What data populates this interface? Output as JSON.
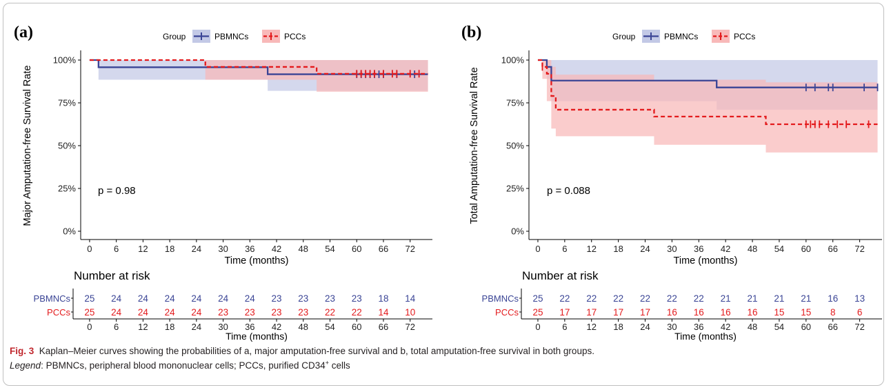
{
  "legend": {
    "title": "Group",
    "items": [
      {
        "name": "PBMNCs",
        "color": "#3a4495",
        "band": "#c3c9e6"
      },
      {
        "name": "PCCs",
        "color": "#e31a1c",
        "band": "#f8b9b9"
      }
    ]
  },
  "risk_table_title": "Number at risk",
  "caption": {
    "label": "Fig. 3",
    "text": "Kaplan–Meier curves showing the probabilities of a, major amputation-free survival and b, total amputation-free survival in both groups.",
    "legend_label": "Legend",
    "legend_text": ": PBMNCs, peripheral blood mononuclear cells; PCCs, purified CD34",
    "superscript": "+",
    "legend_tail": " cells"
  },
  "chart_data": [
    {
      "type": "line",
      "panel_label": "(a)",
      "title": "",
      "xlabel": "Time (months)",
      "ylabel": "Major Amputation-free Survival Rate",
      "xlim": [
        -2,
        77
      ],
      "ylim": [
        0,
        1
      ],
      "x_ticks": [
        0,
        6,
        12,
        18,
        24,
        30,
        36,
        42,
        48,
        54,
        60,
        66,
        72
      ],
      "y_ticks": [
        0,
        0.25,
        0.5,
        0.75,
        1.0
      ],
      "y_tick_labels": [
        "0%",
        "25%",
        "50%",
        "75%",
        "100%"
      ],
      "p_value": "p = 0.98",
      "series": [
        {
          "name": "PBMNCs",
          "color": "#3a4495",
          "dashed": false,
          "steps": [
            [
              0,
              1.0
            ],
            [
              2,
              0.958
            ],
            [
              40,
              0.917
            ],
            [
              76,
              0.917
            ]
          ],
          "lower": [
            [
              0,
              1.0
            ],
            [
              2,
              0.885
            ],
            [
              40,
              0.82
            ],
            [
              76,
              0.82
            ]
          ],
          "upper": [
            [
              0,
              1.0
            ],
            [
              2,
              1.0
            ],
            [
              40,
              1.0
            ],
            [
              76,
              1.0
            ]
          ],
          "censors": [
            60,
            61,
            62,
            63,
            64,
            65,
            66,
            69,
            73
          ]
        },
        {
          "name": "PCCs",
          "color": "#e31a1c",
          "dashed": true,
          "steps": [
            [
              0,
              1.0
            ],
            [
              26,
              0.96
            ],
            [
              51,
              0.92
            ],
            [
              76,
              0.92
            ]
          ],
          "lower": [
            [
              0,
              1.0
            ],
            [
              26,
              0.885
            ],
            [
              51,
              0.815
            ],
            [
              76,
              0.815
            ]
          ],
          "upper": [
            [
              0,
              1.0
            ],
            [
              26,
              1.0
            ],
            [
              51,
              1.0
            ],
            [
              76,
              1.0
            ]
          ],
          "censors": [
            60,
            61,
            62,
            63,
            64,
            66,
            68,
            69,
            72,
            74
          ]
        }
      ],
      "risk_xlabel": "Time (months)",
      "risk_table": [
        {
          "name": "PBMNCs",
          "counts": [
            "25",
            "24",
            "24",
            "24",
            "24",
            "24",
            "24",
            "23",
            "23",
            "23",
            "23",
            "18",
            "14"
          ]
        },
        {
          "name": "PCCs",
          "counts": [
            "25",
            "24",
            "24",
            "24",
            "24",
            "23",
            "23",
            "23",
            "23",
            "22",
            "22",
            "14",
            "10"
          ]
        }
      ]
    },
    {
      "type": "line",
      "panel_label": "(b)",
      "title": "",
      "xlabel": "Time (months)",
      "ylabel": "Total Amputation-free Survival Rate",
      "xlim": [
        -2,
        77
      ],
      "ylim": [
        0,
        1
      ],
      "x_ticks": [
        0,
        6,
        12,
        18,
        24,
        30,
        36,
        42,
        48,
        54,
        60,
        66,
        72
      ],
      "y_ticks": [
        0,
        0.25,
        0.5,
        0.75,
        1.0
      ],
      "y_tick_labels": [
        "0%",
        "25%",
        "50%",
        "75%",
        "100%"
      ],
      "p_value": "p = 0.088",
      "series": [
        {
          "name": "PBMNCs",
          "color": "#3a4495",
          "dashed": false,
          "steps": [
            [
              0,
              1.0
            ],
            [
              2,
              0.96
            ],
            [
              3,
              0.88
            ],
            [
              40,
              0.84
            ],
            [
              76,
              0.84
            ]
          ],
          "lower": [
            [
              0,
              1.0
            ],
            [
              2,
              0.89
            ],
            [
              3,
              0.76
            ],
            [
              40,
              0.71
            ],
            [
              76,
              0.71
            ]
          ],
          "upper": [
            [
              0,
              1.0
            ],
            [
              2,
              1.0
            ],
            [
              3,
              1.0
            ],
            [
              40,
              1.0
            ],
            [
              76,
              1.0
            ]
          ],
          "censors": [
            60,
            62,
            65,
            66,
            73,
            76
          ]
        },
        {
          "name": "PCCs",
          "color": "#e31a1c",
          "dashed": true,
          "steps": [
            [
              0,
              1.0
            ],
            [
              1,
              0.96
            ],
            [
              2,
              0.92
            ],
            [
              3,
              0.79
            ],
            [
              4,
              0.71
            ],
            [
              26,
              0.67
            ],
            [
              51,
              0.625
            ],
            [
              76,
              0.625
            ]
          ],
          "lower": [
            [
              0,
              1.0
            ],
            [
              1,
              0.89
            ],
            [
              2,
              0.76
            ],
            [
              3,
              0.6
            ],
            [
              4,
              0.555
            ],
            [
              26,
              0.505
            ],
            [
              51,
              0.46
            ],
            [
              76,
              0.46
            ]
          ],
          "upper": [
            [
              0,
              1.0
            ],
            [
              1,
              1.0
            ],
            [
              2,
              1.0
            ],
            [
              3,
              0.96
            ],
            [
              4,
              0.915
            ],
            [
              26,
              0.885
            ],
            [
              51,
              0.87
            ],
            [
              76,
              0.87
            ]
          ],
          "censors": [
            1,
            60,
            61,
            62,
            63,
            65,
            67,
            69,
            74
          ]
        }
      ],
      "risk_xlabel": "Time (months)",
      "risk_table": [
        {
          "name": "PBMNCs",
          "counts": [
            "25",
            "22",
            "22",
            "22",
            "22",
            "22",
            "22",
            "21",
            "21",
            "21",
            "21",
            "16",
            "13"
          ]
        },
        {
          "name": "PCCs",
          "counts": [
            "25",
            "17",
            "17",
            "17",
            "17",
            "16",
            "16",
            "16",
            "16",
            "15",
            "15",
            "8",
            "6"
          ]
        }
      ]
    }
  ]
}
